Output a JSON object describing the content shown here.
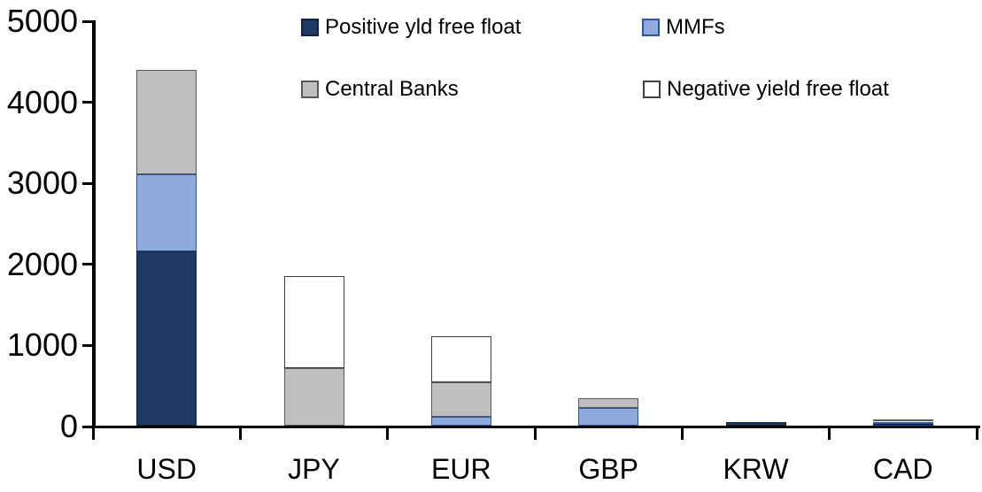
{
  "chart_data": {
    "type": "bar",
    "stacked": true,
    "title": "",
    "xlabel": "",
    "ylabel": "",
    "categories": [
      "USD",
      "JPY",
      "EUR",
      "GBP",
      "KRW",
      "CAD"
    ],
    "series": [
      {
        "name": "Positive yld free float",
        "color": "#1F3864",
        "border_color": "#10243E",
        "values": [
          2160,
          0,
          0,
          0,
          45,
          25
        ]
      },
      {
        "name": "MMFs",
        "color": "#8FAADC",
        "border_color": "#2E5597",
        "values": [
          950,
          0,
          120,
          220,
          0,
          15
        ]
      },
      {
        "name": "Central Banks",
        "color": "#BFBFBF",
        "border_color": "#595959",
        "values": [
          1280,
          710,
          420,
          120,
          0,
          30
        ]
      },
      {
        "name": "Negative yield free float",
        "color": "#FFFFFF",
        "border_color": "#404040",
        "values": [
          0,
          1140,
          570,
          0,
          0,
          0
        ]
      }
    ],
    "totals": [
      4390,
      1850,
      1110,
      340,
      45,
      70
    ],
    "ylim": [
      0,
      5000
    ],
    "ytick_interval": 1000,
    "yticks": [
      "0",
      "1000",
      "2000",
      "3000",
      "4000",
      "5000"
    ],
    "grid": false,
    "legend_position": "top-two-rows",
    "axis_color": "#000000",
    "background_color": "#FFFFFF"
  }
}
